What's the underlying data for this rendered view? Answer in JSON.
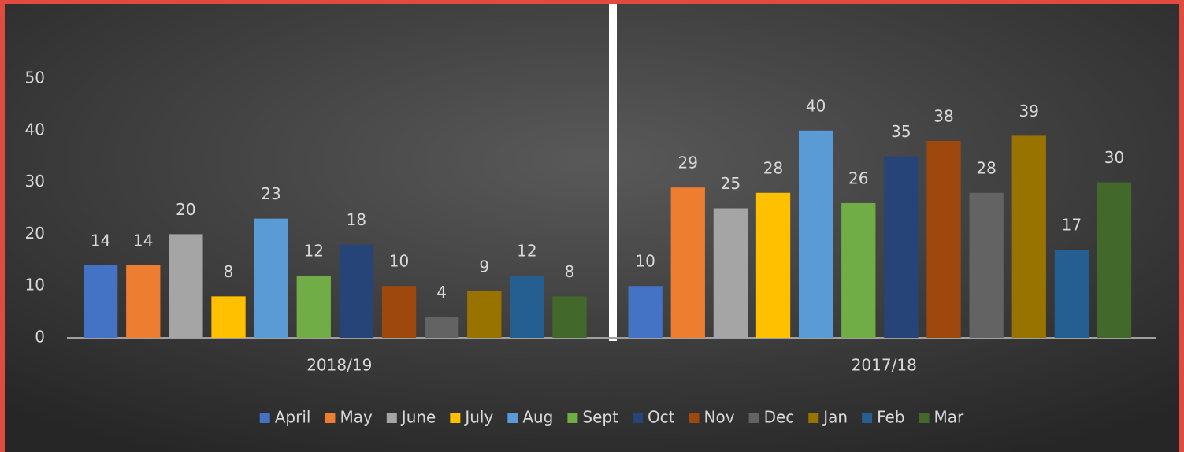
{
  "chart_data": {
    "type": "bar",
    "categories": [
      "2018/19",
      "2017/18"
    ],
    "series": [
      {
        "name": "April",
        "color": "#4472c4",
        "values": [
          14,
          10
        ]
      },
      {
        "name": "May",
        "color": "#ed7d31",
        "values": [
          14,
          29
        ]
      },
      {
        "name": "June",
        "color": "#a5a5a5",
        "values": [
          20,
          25
        ]
      },
      {
        "name": "July",
        "color": "#ffc000",
        "values": [
          8,
          28
        ]
      },
      {
        "name": "Aug",
        "color": "#5b9bd5",
        "values": [
          23,
          40
        ]
      },
      {
        "name": "Sept",
        "color": "#70ad47",
        "values": [
          12,
          26
        ]
      },
      {
        "name": "Oct",
        "color": "#264478",
        "values": [
          18,
          35
        ]
      },
      {
        "name": "Nov",
        "color": "#9e480e",
        "values": [
          10,
          38
        ]
      },
      {
        "name": "Dec",
        "color": "#636363",
        "values": [
          4,
          28
        ]
      },
      {
        "name": "Jan",
        "color": "#997300",
        "values": [
          9,
          39
        ]
      },
      {
        "name": "Feb",
        "color": "#255e91",
        "values": [
          12,
          17
        ]
      },
      {
        "name": "Mar",
        "color": "#43682b",
        "values": [
          8,
          30
        ]
      }
    ],
    "ylim": [
      0,
      50
    ],
    "yticks": [
      0,
      10,
      20,
      30,
      40,
      50
    ],
    "grid": false,
    "legend": "bottom"
  }
}
